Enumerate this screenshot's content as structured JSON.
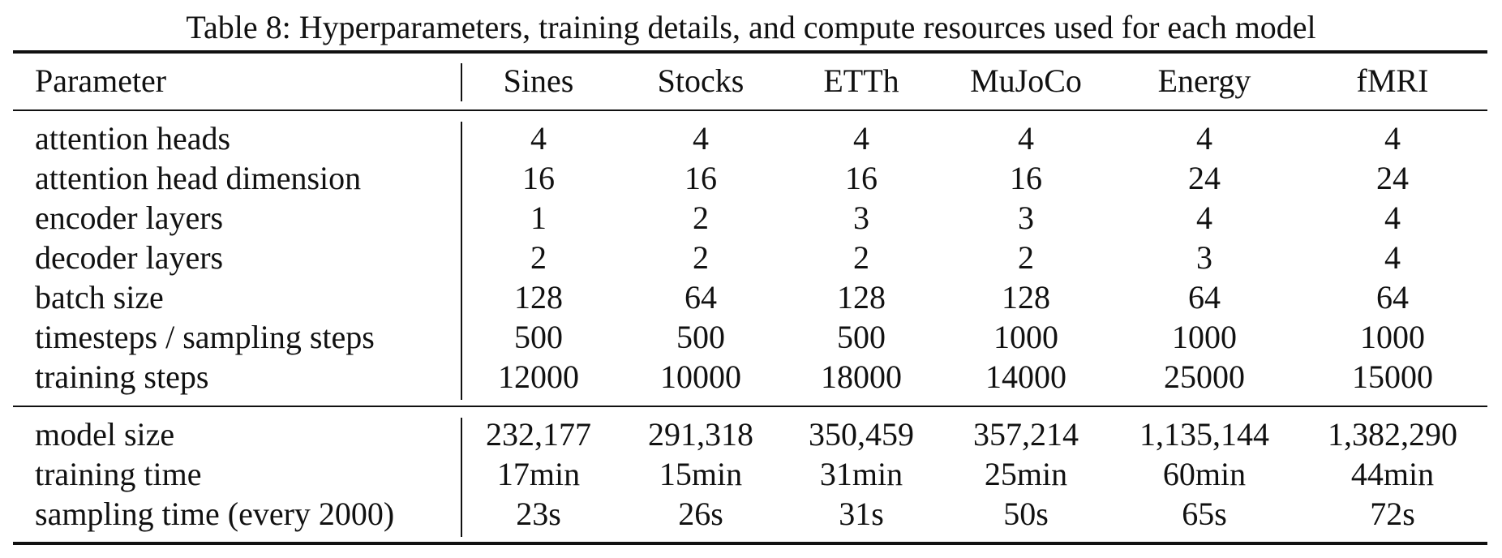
{
  "caption": "Table 8: Hyperparameters, training details, and compute resources used for each model",
  "table": {
    "columns": [
      "Parameter",
      "Sines",
      "Stocks",
      "ETTh",
      "MuJoCo",
      "Energy",
      "fMRI"
    ],
    "hyperparameters": [
      {
        "label": "attention heads",
        "values": [
          "4",
          "4",
          "4",
          "4",
          "4",
          "4"
        ]
      },
      {
        "label": "attention head dimension",
        "values": [
          "16",
          "16",
          "16",
          "16",
          "24",
          "24"
        ]
      },
      {
        "label": "encoder layers",
        "values": [
          "1",
          "2",
          "3",
          "3",
          "4",
          "4"
        ]
      },
      {
        "label": "decoder layers",
        "values": [
          "2",
          "2",
          "2",
          "2",
          "3",
          "4"
        ]
      },
      {
        "label": "batch size",
        "values": [
          "128",
          "64",
          "128",
          "128",
          "64",
          "64"
        ]
      },
      {
        "label": "timesteps / sampling steps",
        "values": [
          "500",
          "500",
          "500",
          "1000",
          "1000",
          "1000"
        ]
      },
      {
        "label": "training steps",
        "values": [
          "12000",
          "10000",
          "18000",
          "14000",
          "25000",
          "15000"
        ]
      }
    ],
    "resources": [
      {
        "label": "model size",
        "values": [
          "232,177",
          "291,318",
          "350,459",
          "357,214",
          "1,135,144",
          "1,382,290"
        ]
      },
      {
        "label": "training time",
        "values": [
          "17min",
          "15min",
          "31min",
          "25min",
          "60min",
          "44min"
        ]
      },
      {
        "label": "sampling time (every 2000)",
        "values": [
          "23s",
          "26s",
          "31s",
          "50s",
          "65s",
          "72s"
        ]
      }
    ]
  }
}
